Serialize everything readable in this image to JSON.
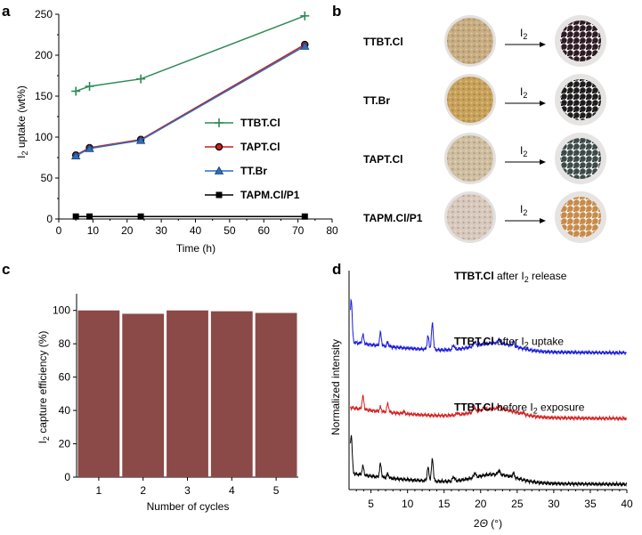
{
  "panel_labels": {
    "a": "a",
    "b": "b",
    "c": "c",
    "d": "d"
  },
  "chart_data": [
    {
      "panel": "a",
      "type": "line",
      "xlabel": "Time (h)",
      "ylabel_main": "I",
      "ylabel_sub": "2",
      "ylabel_rest": " uptake (wt%)",
      "xlim": [
        0,
        80
      ],
      "ylim": [
        0,
        250
      ],
      "xticks": [
        0,
        10,
        20,
        30,
        40,
        50,
        60,
        70,
        80
      ],
      "yticks": [
        0,
        50,
        100,
        150,
        200,
        250
      ],
      "series": [
        {
          "name": "TTBT.Cl",
          "color": "#2e8b57",
          "marker": "plus",
          "x": [
            5,
            9,
            24,
            72
          ],
          "y": [
            156,
            162,
            171,
            248
          ]
        },
        {
          "name": "TAPT.Cl",
          "color": "#cc1f1f",
          "marker": "circle",
          "x": [
            5,
            9,
            24,
            72
          ],
          "y": [
            78,
            87,
            97,
            213
          ]
        },
        {
          "name": "TT.Br",
          "color": "#2a6fbf",
          "marker": "triangle",
          "x": [
            5,
            9,
            24,
            72
          ],
          "y": [
            77,
            86,
            96,
            211
          ]
        },
        {
          "name": "TAPM.Cl/P1",
          "color": "#000000",
          "marker": "square",
          "x": [
            5,
            9,
            24,
            72
          ],
          "y": [
            3,
            3,
            3,
            3
          ]
        }
      ]
    },
    {
      "panel": "c",
      "type": "bar",
      "xlabel": "Number of cycles",
      "ylabel_main": "I",
      "ylabel_sub": "2",
      "ylabel_rest": " capture efficiency (%)",
      "categories": [
        "1",
        "2",
        "3",
        "4",
        "5"
      ],
      "values": [
        100,
        98,
        100,
        99.5,
        98.5
      ],
      "ylim": [
        0,
        110
      ],
      "yticks": [
        0,
        20,
        40,
        60,
        80,
        100
      ],
      "color": "#8b4a47"
    },
    {
      "panel": "d",
      "type": "line",
      "xlabel_main": "2",
      "xlabel_italic": "Θ",
      "xlabel_rest": " (°)",
      "ylabel": "Normalized intensity",
      "xlim": [
        2,
        40
      ],
      "xticks": [
        5,
        10,
        15,
        20,
        25,
        30,
        35,
        40
      ],
      "series": [
        {
          "name": "TTBT.Cl",
          "desc_before": " after I",
          "desc_sub": "2",
          "desc_after": " release",
          "color": "#1a1adb",
          "offset": 0.6,
          "peaks": [
            [
              2.3,
              1.0
            ],
            [
              3.9,
              0.2
            ],
            [
              6.3,
              0.3
            ],
            [
              7.3,
              0.1
            ],
            [
              12.8,
              0.3
            ],
            [
              13.4,
              0.6
            ],
            [
              16.3,
              0.1
            ],
            [
              19.2,
              0.1
            ],
            [
              22.5,
              0.1
            ],
            [
              24.5,
              0.1
            ]
          ]
        },
        {
          "name": "TTBT.Cl",
          "desc_before": " after I",
          "desc_sub": "2",
          "desc_after": " uptake",
          "color": "#d42020",
          "offset": 0.3,
          "peaks": [
            [
              3.9,
              0.3
            ],
            [
              6.3,
              0.1
            ],
            [
              7.3,
              0.2
            ],
            [
              9.5,
              0.05
            ],
            [
              16.8,
              0.05
            ],
            [
              19.1,
              0.15
            ],
            [
              20.5,
              0.05
            ],
            [
              22.5,
              0.06
            ],
            [
              25.8,
              0.04
            ]
          ]
        },
        {
          "name": "TTBT.Cl",
          "desc_before": " before I",
          "desc_sub": "2",
          "desc_after": " exposure",
          "color": "#000000",
          "offset": 0.0,
          "peaks": [
            [
              2.3,
              0.9
            ],
            [
              3.9,
              0.2
            ],
            [
              6.3,
              0.3
            ],
            [
              7.3,
              0.1
            ],
            [
              12.8,
              0.3
            ],
            [
              13.4,
              0.5
            ],
            [
              16.3,
              0.1
            ],
            [
              19.2,
              0.1
            ],
            [
              22.5,
              0.1
            ],
            [
              24.5,
              0.1
            ]
          ]
        }
      ]
    }
  ],
  "panel_b": {
    "rows": [
      {
        "name": "TTBT.Cl",
        "arrow_label": "I",
        "arrow_sub": "2",
        "before_color": "#c9ad82",
        "after_color": "#2e1a22"
      },
      {
        "name": "TT.Br",
        "arrow_label": "I",
        "arrow_sub": "2",
        "before_color": "#c9a25a",
        "after_color": "#1e1b1c"
      },
      {
        "name": "TAPT.Cl",
        "arrow_label": "I",
        "arrow_sub": "2",
        "before_color": "#d0bea0",
        "after_color": "#3c4a48"
      },
      {
        "name": "TAPM.Cl/P1",
        "arrow_label": "I",
        "arrow_sub": "2",
        "before_color": "#d9c9bd",
        "after_color": "#c98a45"
      }
    ]
  }
}
